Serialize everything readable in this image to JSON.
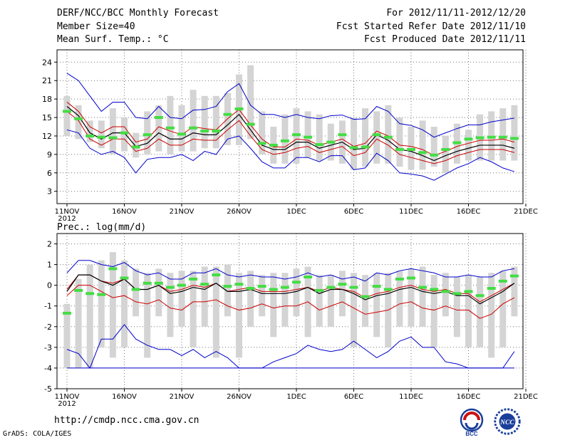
{
  "header": {
    "title": "DERF/NCC/BCC Monthly Forecast",
    "member_size": "Member Size=40",
    "variable": "Mean Surf. Temp.: °C",
    "period": "For 2012/11/11-2012/12/20",
    "fcst_started": "Fcst Started Refer Date 2012/11/10",
    "fcst_produced": "Fcst Produced Date 2012/11/11"
  },
  "footer": {
    "url": "http://cmdp.ncc.cma.gov.cn",
    "grads": "GrADS: COLA/IGES",
    "logo_bcc": "BCC",
    "logo_ncc": "NCC"
  },
  "colors": {
    "box": "#d4d4d4",
    "obs": "#44dd44",
    "mean": "#000000",
    "spread": "#cc0000",
    "extreme": "#0000cc",
    "grid": "#777777"
  },
  "chart_data": [
    {
      "id": "temperature",
      "type": "box",
      "title": "Mean Surf. Temp.: °C",
      "xlabel": "",
      "ylabel": "°C",
      "ylim": [
        1,
        26
      ],
      "yticks": [
        3,
        6,
        9,
        12,
        15,
        18,
        21,
        24
      ],
      "xticks": [
        {
          "day": 0,
          "label": "11NOV",
          "sub": "2012"
        },
        {
          "day": 5,
          "label": "16NOV"
        },
        {
          "day": 10,
          "label": "21NOV"
        },
        {
          "day": 15,
          "label": "26NOV"
        },
        {
          "day": 20,
          "label": "1DEC"
        },
        {
          "day": 25,
          "label": "6DEC"
        },
        {
          "day": 30,
          "label": "11DEC"
        },
        {
          "day": 35,
          "label": "16DEC"
        },
        {
          "day": 40,
          "label": "21DEC"
        }
      ],
      "x": [
        0,
        1,
        2,
        3,
        4,
        5,
        6,
        7,
        8,
        9,
        10,
        11,
        12,
        13,
        14,
        15,
        16,
        17,
        18,
        19,
        20,
        21,
        22,
        23,
        24,
        25,
        26,
        27,
        28,
        29,
        30,
        31,
        32,
        33,
        34,
        35,
        36,
        37,
        38,
        39
      ],
      "box_high": [
        18.5,
        17.0,
        14.5,
        14.5,
        16.5,
        15.0,
        12.5,
        16.0,
        17.0,
        18.5,
        17.0,
        19.5,
        18.5,
        18.5,
        19.0,
        22.0,
        23.5,
        16.0,
        13.5,
        15.5,
        16.5,
        16.0,
        15.5,
        14.0,
        14.5,
        15.0,
        16.5,
        16.0,
        17.0,
        15.0,
        13.5,
        14.5,
        13.5,
        12.0,
        14.0,
        13.0,
        15.5,
        16.0,
        16.5,
        17.0
      ],
      "box_low": [
        12.0,
        11.5,
        11.0,
        10.0,
        9.0,
        9.5,
        8.5,
        9.0,
        9.5,
        9.0,
        9.5,
        9.5,
        10.0,
        10.0,
        10.5,
        10.5,
        11.5,
        9.0,
        7.5,
        7.5,
        7.5,
        8.5,
        8.0,
        8.0,
        7.5,
        6.5,
        7.0,
        7.5,
        7.5,
        7.0,
        6.5,
        6.5,
        7.0,
        6.0,
        7.5,
        8.0,
        8.0,
        8.0,
        8.0,
        8.0
      ],
      "observed": [
        16.0,
        14.8,
        12.0,
        11.8,
        11.7,
        12.5,
        10.2,
        12.2,
        15.0,
        13.3,
        12.3,
        13.3,
        12.8,
        12.8,
        15.5,
        16.4,
        13.9,
        10.8,
        10.5,
        11.2,
        12.2,
        11.8,
        10.6,
        11.0,
        12.2,
        10.1,
        10.2,
        12.2,
        11.8,
        9.8,
        9.8,
        9.3,
        8.9,
        9.8,
        10.9,
        11.5,
        11.7,
        11.8,
        11.8,
        11.6
      ],
      "series": [
        {
          "name": "ensemble max",
          "role": "extreme",
          "values": [
            22.2,
            21.0,
            18.5,
            16.0,
            17.5,
            17.5,
            15.0,
            14.8,
            16.8,
            15.0,
            14.8,
            16.2,
            16.3,
            16.8,
            19.2,
            20.5,
            17.0,
            15.5,
            15.5,
            15.0,
            15.5,
            15.0,
            14.8,
            15.3,
            15.4,
            14.7,
            14.8,
            16.8,
            16.0,
            14.0,
            13.7,
            13.0,
            11.8,
            12.5,
            13.2,
            13.8,
            13.8,
            14.3,
            14.6,
            14.9
          ]
        },
        {
          "name": "mean + std",
          "role": "spread",
          "values": [
            17.5,
            16.0,
            13.5,
            12.5,
            13.5,
            13.5,
            11.0,
            11.5,
            13.5,
            12.8,
            12.2,
            13.5,
            13.2,
            13.0,
            14.8,
            16.3,
            13.8,
            11.5,
            10.2,
            10.2,
            11.5,
            11.3,
            10.5,
            11.0,
            11.5,
            10.3,
            10.8,
            12.8,
            12.0,
            10.5,
            10.3,
            9.8,
            8.8,
            9.5,
            10.3,
            10.8,
            11.3,
            11.3,
            11.5,
            11.0
          ]
        },
        {
          "name": "ensemble mean",
          "role": "mean",
          "values": [
            16.8,
            15.3,
            12.5,
            11.5,
            12.5,
            12.5,
            10.3,
            10.8,
            12.5,
            11.5,
            11.5,
            12.5,
            12.2,
            12.2,
            13.8,
            15.5,
            13.0,
            10.5,
            9.8,
            9.8,
            11.0,
            11.0,
            10.0,
            10.5,
            11.0,
            9.8,
            10.0,
            12.2,
            11.3,
            9.8,
            9.5,
            8.8,
            8.0,
            8.8,
            9.5,
            10.0,
            10.5,
            10.5,
            10.5,
            10.0
          ]
        },
        {
          "name": "mean - std",
          "role": "spread",
          "values": [
            16.0,
            14.5,
            11.5,
            10.5,
            11.5,
            11.5,
            9.5,
            10.0,
            11.5,
            10.5,
            10.5,
            11.5,
            11.3,
            11.3,
            13.0,
            14.5,
            12.0,
            9.8,
            9.0,
            9.3,
            10.0,
            10.3,
            9.3,
            9.8,
            10.3,
            8.8,
            9.3,
            11.5,
            10.5,
            9.0,
            8.5,
            8.0,
            7.5,
            8.0,
            8.8,
            9.3,
            9.8,
            9.8,
            9.8,
            9.3
          ]
        },
        {
          "name": "ensemble min",
          "role": "extreme",
          "values": [
            13.0,
            12.5,
            10.0,
            9.0,
            9.5,
            8.5,
            6.0,
            8.2,
            8.5,
            8.5,
            9.0,
            8.0,
            9.5,
            9.0,
            11.5,
            12.0,
            10.0,
            7.8,
            6.8,
            6.8,
            8.5,
            8.5,
            7.8,
            8.8,
            8.8,
            6.5,
            6.8,
            9.2,
            8.0,
            6.0,
            5.8,
            5.5,
            4.8,
            5.8,
            6.8,
            7.5,
            8.5,
            7.8,
            6.8,
            6.2
          ]
        }
      ]
    },
    {
      "id": "precipitation",
      "type": "box",
      "title": "Prec.: log(mm/d)",
      "xlabel": "",
      "ylabel": "log(mm/d)",
      "ylim": [
        -5,
        2.5
      ],
      "yticks": [
        -5,
        -4,
        -3,
        -2,
        -1,
        0,
        1,
        2
      ],
      "xticks": [
        {
          "day": 0,
          "label": "11NOV",
          "sub": "2012"
        },
        {
          "day": 5,
          "label": "16NOV"
        },
        {
          "day": 10,
          "label": "21NOV"
        },
        {
          "day": 15,
          "label": "26NOV"
        },
        {
          "day": 20,
          "label": "1DEC"
        },
        {
          "day": 25,
          "label": "6DEC"
        },
        {
          "day": 30,
          "label": "11DEC"
        },
        {
          "day": 35,
          "label": "16DEC"
        },
        {
          "day": 40,
          "label": "21DEC"
        }
      ],
      "x": [
        0,
        1,
        2,
        3,
        4,
        5,
        6,
        7,
        8,
        9,
        10,
        11,
        12,
        13,
        14,
        15,
        16,
        17,
        18,
        19,
        20,
        21,
        22,
        23,
        24,
        25,
        26,
        27,
        28,
        29,
        30,
        31,
        32,
        33,
        34,
        35,
        36,
        37,
        38,
        39
      ],
      "box_high": [
        -0.9,
        0.3,
        1.0,
        1.2,
        1.6,
        1.2,
        0.8,
        0.6,
        0.8,
        0.6,
        0.7,
        0.7,
        0.9,
        0.9,
        1.0,
        0.6,
        0.7,
        0.5,
        0.6,
        0.6,
        0.8,
        0.9,
        0.5,
        0.5,
        0.7,
        0.6,
        0.5,
        0.6,
        0.6,
        0.7,
        0.8,
        0.9,
        0.5,
        0.6,
        0.4,
        0.5,
        0.4,
        0.6,
        0.7,
        0.9
      ],
      "box_low": [
        -4.0,
        -4.0,
        -4.0,
        -3.0,
        -3.5,
        -3.0,
        -1.5,
        -3.5,
        -1.5,
        -2.5,
        -2.0,
        -3.0,
        -2.0,
        -3.5,
        -1.5,
        -3.5,
        -2.0,
        -1.5,
        -2.5,
        -2.0,
        -1.5,
        -2.5,
        -2.0,
        -2.0,
        -1.5,
        -3.0,
        -2.0,
        -2.5,
        -3.0,
        -2.0,
        -2.0,
        -2.0,
        -3.0,
        -1.5,
        -2.5,
        -3.0,
        -3.0,
        -3.5,
        -3.0,
        -1.5
      ],
      "observed": [
        -1.35,
        -0.25,
        -0.4,
        -0.45,
        0.8,
        0.35,
        -0.2,
        0.1,
        0.1,
        -0.1,
        0.0,
        0.3,
        0.05,
        0.5,
        -0.05,
        0.05,
        -0.15,
        -0.05,
        -0.2,
        -0.1,
        0.15,
        0.4,
        -0.25,
        -0.1,
        0.05,
        -0.1,
        -0.55,
        -0.05,
        -0.2,
        0.3,
        0.35,
        -0.1,
        -0.2,
        -0.3,
        -0.4,
        -0.3,
        -0.5,
        -0.15,
        0.2,
        0.45
      ],
      "series": [
        {
          "name": "ensemble max",
          "role": "extreme",
          "values": [
            0.6,
            1.2,
            1.2,
            1.0,
            0.9,
            1.1,
            0.7,
            0.5,
            0.6,
            0.3,
            0.3,
            0.6,
            0.6,
            0.8,
            0.5,
            0.4,
            0.5,
            0.4,
            0.4,
            0.3,
            0.4,
            0.6,
            0.4,
            0.5,
            0.3,
            0.4,
            0.2,
            0.6,
            0.5,
            0.7,
            0.8,
            0.7,
            0.6,
            0.4,
            0.4,
            0.5,
            0.4,
            0.4,
            0.7,
            0.8
          ]
        },
        {
          "name": "mean + std",
          "role": "spread",
          "values": [
            -0.2,
            0.5,
            0.5,
            0.2,
            0.1,
            0.3,
            -0.2,
            -0.2,
            0.0,
            -0.3,
            -0.2,
            0.0,
            -0.1,
            0.1,
            -0.3,
            -0.2,
            -0.1,
            -0.3,
            -0.3,
            -0.3,
            -0.2,
            -0.1,
            -0.3,
            -0.1,
            -0.2,
            -0.3,
            -0.6,
            -0.4,
            -0.3,
            -0.1,
            0.0,
            -0.2,
            -0.3,
            -0.2,
            -0.4,
            -0.4,
            -0.8,
            -0.5,
            -0.2,
            0.1
          ]
        },
        {
          "name": "ensemble mean",
          "role": "mean",
          "values": [
            -0.3,
            0.5,
            0.5,
            0.2,
            0.0,
            0.3,
            -0.2,
            -0.2,
            0.0,
            -0.4,
            -0.3,
            -0.1,
            -0.2,
            0.1,
            -0.3,
            -0.3,
            -0.2,
            -0.4,
            -0.4,
            -0.4,
            -0.3,
            -0.1,
            -0.4,
            -0.2,
            -0.2,
            -0.4,
            -0.7,
            -0.5,
            -0.4,
            -0.2,
            -0.1,
            -0.3,
            -0.4,
            -0.3,
            -0.5,
            -0.5,
            -0.9,
            -0.6,
            -0.3,
            0.1
          ]
        },
        {
          "name": "mean - std",
          "role": "spread",
          "values": [
            -0.5,
            0.0,
            0.0,
            -0.3,
            -0.6,
            -0.5,
            -0.8,
            -0.9,
            -0.7,
            -1.1,
            -1.2,
            -0.8,
            -0.8,
            -0.7,
            -1.0,
            -1.2,
            -1.1,
            -0.9,
            -1.1,
            -1.0,
            -1.0,
            -0.8,
            -1.2,
            -1.0,
            -0.8,
            -1.1,
            -1.4,
            -1.3,
            -1.2,
            -0.9,
            -0.8,
            -1.1,
            -1.2,
            -1.0,
            -1.2,
            -1.2,
            -1.6,
            -1.4,
            -0.9,
            -0.6
          ]
        },
        {
          "name": "ensemble min",
          "role": "extreme",
          "values": [
            -3.1,
            -3.3,
            -4.0,
            -2.6,
            -2.6,
            -1.9,
            -2.6,
            -2.9,
            -3.1,
            -3.1,
            -3.4,
            -3.1,
            -3.5,
            -3.2,
            -3.5,
            -4.0,
            -4.0,
            -4.0,
            -3.7,
            -3.5,
            -3.3,
            -2.9,
            -3.1,
            -3.2,
            -3.1,
            -2.7,
            -3.1,
            -3.5,
            -3.2,
            -2.7,
            -2.5,
            -3.0,
            -3.0,
            -3.7,
            -3.8,
            -4.0,
            -4.0,
            -4.0,
            -4.0,
            -3.2
          ]
        },
        {
          "name": "floor",
          "role": "floor",
          "values": [
            -4.0,
            -4.0,
            -4.0,
            -4.0,
            -4.0,
            -4.0,
            -4.0,
            -4.0,
            -4.0,
            -4.0,
            -4.0,
            -4.0,
            -4.0,
            -4.0,
            -4.0,
            -4.0,
            -4.0,
            -4.0,
            -4.0,
            -4.0,
            -4.0,
            -4.0,
            -4.0,
            -4.0,
            -4.0,
            -4.0,
            -4.0,
            -4.0,
            -4.0,
            -4.0,
            -4.0,
            -4.0,
            -4.0,
            -4.0,
            -4.0,
            -4.0,
            -4.0,
            -4.0,
            -4.0,
            -4.0
          ]
        }
      ]
    }
  ]
}
